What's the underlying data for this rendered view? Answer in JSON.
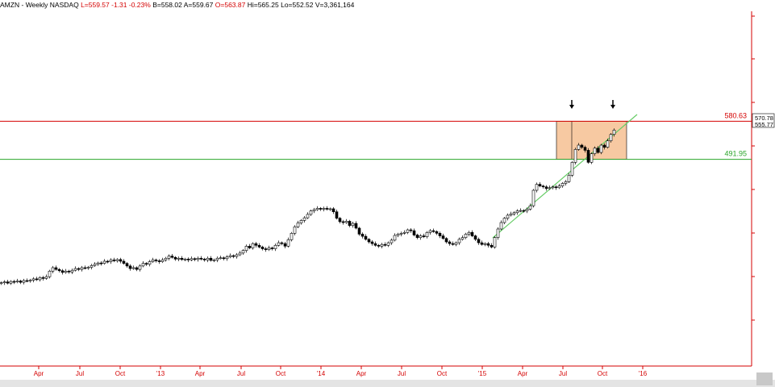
{
  "header": {
    "symbol": "AMZN",
    "period": "Weekly",
    "exchange": "NASDAQ",
    "last": "L=559.57",
    "change": "-1.31",
    "change_pct": "-0.23%",
    "bid": "B=558.02",
    "ask": "A=559.67",
    "open": "O=563.87",
    "high": "Hi=565.25",
    "low": "Lo=552.52",
    "volume": "V=3,361,164"
  },
  "levels": {
    "resistance": {
      "label": "580.63",
      "value": 580.63,
      "color": "#d40000"
    },
    "support": {
      "label": "491.95",
      "value": 491.95,
      "color": "#2aa52a"
    }
  },
  "price_tags": [
    "570.78",
    "555.77"
  ],
  "colors": {
    "zone_fill": "#f7c9a2",
    "trendline": "#66cc66",
    "axis": "#d40000",
    "candle": "#000000"
  },
  "chart_data": {
    "type": "candlestick",
    "title": "AMZN - Weekly NASDAQ",
    "x_ticks": [
      "Apr",
      "Jul",
      "Oct",
      "'13",
      "Apr",
      "Jul",
      "Oct",
      "'14",
      "Apr",
      "Jul",
      "Oct",
      "'15",
      "Apr",
      "Jul",
      "Oct",
      "'16"
    ],
    "ylim": [
      0,
      620
    ],
    "resistance": 580.63,
    "support": 491.95,
    "series": [
      {
        "values": [
          [
            0,
            205
          ],
          [
            4,
            207
          ],
          [
            8,
            204
          ],
          [
            12,
            208
          ],
          [
            16,
            207
          ],
          [
            20,
            209
          ],
          [
            24,
            206
          ],
          [
            28,
            210
          ],
          [
            32,
            209
          ],
          [
            36,
            211
          ],
          [
            40,
            214
          ],
          [
            44,
            212
          ],
          [
            48,
            217
          ],
          [
            52,
            215
          ],
          [
            56,
            219
          ],
          [
            60,
            232
          ],
          [
            64,
            240
          ],
          [
            68,
            236
          ],
          [
            72,
            233
          ],
          [
            76,
            229
          ],
          [
            80,
            232
          ],
          [
            84,
            230
          ],
          [
            88,
            234
          ],
          [
            92,
            238
          ],
          [
            96,
            236
          ],
          [
            100,
            240
          ],
          [
            104,
            239
          ],
          [
            108,
            241
          ],
          [
            112,
            245
          ],
          [
            116,
            248
          ],
          [
            120,
            251
          ],
          [
            124,
            250
          ],
          [
            128,
            255
          ],
          [
            132,
            254
          ],
          [
            136,
            258
          ],
          [
            140,
            256
          ],
          [
            144,
            259
          ],
          [
            148,
            255
          ],
          [
            152,
            250
          ],
          [
            156,
            244
          ],
          [
            160,
            238
          ],
          [
            164,
            240
          ],
          [
            168,
            236
          ],
          [
            172,
            244
          ],
          [
            176,
            250
          ],
          [
            180,
            248
          ],
          [
            184,
            254
          ],
          [
            188,
            258
          ],
          [
            192,
            256
          ],
          [
            196,
            254
          ],
          [
            200,
            258
          ],
          [
            204,
            262
          ],
          [
            208,
            267
          ],
          [
            212,
            264
          ],
          [
            216,
            260
          ],
          [
            220,
            262
          ],
          [
            224,
            259
          ],
          [
            228,
            260
          ],
          [
            232,
            258
          ],
          [
            236,
            261
          ],
          [
            240,
            259
          ],
          [
            244,
            262
          ],
          [
            248,
            260
          ],
          [
            252,
            258
          ],
          [
            256,
            262
          ],
          [
            260,
            257
          ],
          [
            264,
            258
          ],
          [
            268,
            262
          ],
          [
            272,
            263
          ],
          [
            276,
            261
          ],
          [
            280,
            265
          ],
          [
            284,
            268
          ],
          [
            288,
            266
          ],
          [
            292,
            270
          ],
          [
            296,
            274
          ],
          [
            300,
            280
          ],
          [
            304,
            290
          ],
          [
            308,
            286
          ],
          [
            312,
            296
          ],
          [
            316,
            292
          ],
          [
            320,
            288
          ],
          [
            324,
            284
          ],
          [
            328,
            282
          ],
          [
            332,
            286
          ],
          [
            336,
            284
          ],
          [
            340,
            292
          ],
          [
            344,
            298
          ],
          [
            348,
            296
          ],
          [
            352,
            290
          ],
          [
            356,
            305
          ],
          [
            360,
            320
          ],
          [
            364,
            335
          ],
          [
            368,
            344
          ],
          [
            372,
            350
          ],
          [
            376,
            356
          ],
          [
            380,
            364
          ],
          [
            384,
            372
          ],
          [
            388,
            375
          ],
          [
            392,
            378
          ],
          [
            396,
            376
          ],
          [
            400,
            378
          ],
          [
            404,
            376
          ],
          [
            408,
            377
          ],
          [
            412,
            370
          ],
          [
            416,
            355
          ],
          [
            420,
            347
          ],
          [
            424,
            345
          ],
          [
            428,
            348
          ],
          [
            432,
            338
          ],
          [
            436,
            343
          ],
          [
            440,
            332
          ],
          [
            444,
            318
          ],
          [
            448,
            313
          ],
          [
            452,
            306
          ],
          [
            456,
            300
          ],
          [
            460,
            296
          ],
          [
            464,
            292
          ],
          [
            468,
            290
          ],
          [
            472,
            294
          ],
          [
            476,
            292
          ],
          [
            480,
            298
          ],
          [
            484,
            304
          ],
          [
            488,
            315
          ],
          [
            492,
            318
          ],
          [
            496,
            320
          ],
          [
            500,
            322
          ],
          [
            504,
            328
          ],
          [
            508,
            326
          ],
          [
            512,
            316
          ],
          [
            516,
            310
          ],
          [
            520,
            314
          ],
          [
            524,
            312
          ],
          [
            528,
            322
          ],
          [
            532,
            326
          ],
          [
            536,
            324
          ],
          [
            540,
            320
          ],
          [
            544,
            314
          ],
          [
            548,
            308
          ],
          [
            552,
            300
          ],
          [
            556,
            296
          ],
          [
            560,
            294
          ],
          [
            564,
            298
          ],
          [
            568,
            306
          ],
          [
            572,
            310
          ],
          [
            576,
            318
          ],
          [
            580,
            322
          ],
          [
            584,
            314
          ],
          [
            588,
            306
          ],
          [
            592,
            298
          ],
          [
            596,
            294
          ],
          [
            600,
            296
          ],
          [
            604,
            292
          ],
          [
            608,
            288
          ],
          [
            612,
            310
          ],
          [
            616,
            330
          ],
          [
            620,
            345
          ],
          [
            624,
            355
          ],
          [
            628,
            362
          ],
          [
            632,
            365
          ],
          [
            636,
            368
          ],
          [
            640,
            372
          ],
          [
            644,
            373
          ],
          [
            648,
            372
          ],
          [
            652,
            376
          ],
          [
            656,
            384
          ],
          [
            660,
            420
          ],
          [
            664,
            434
          ],
          [
            668,
            430
          ],
          [
            672,
            428
          ],
          [
            676,
            424
          ],
          [
            680,
            426
          ],
          [
            684,
            428
          ],
          [
            688,
            426
          ],
          [
            692,
            430
          ],
          [
            696,
            436
          ],
          [
            700,
            440
          ],
          [
            704,
            455
          ],
          [
            708,
            485
          ],
          [
            712,
            515
          ],
          [
            716,
            525
          ],
          [
            720,
            520
          ],
          [
            724,
            513
          ],
          [
            728,
            485
          ],
          [
            732,
            505
          ],
          [
            736,
            518
          ],
          [
            740,
            508
          ],
          [
            744,
            525
          ],
          [
            748,
            520
          ],
          [
            752,
            535
          ],
          [
            756,
            550
          ],
          [
            760,
            560
          ]
        ]
      }
    ]
  }
}
